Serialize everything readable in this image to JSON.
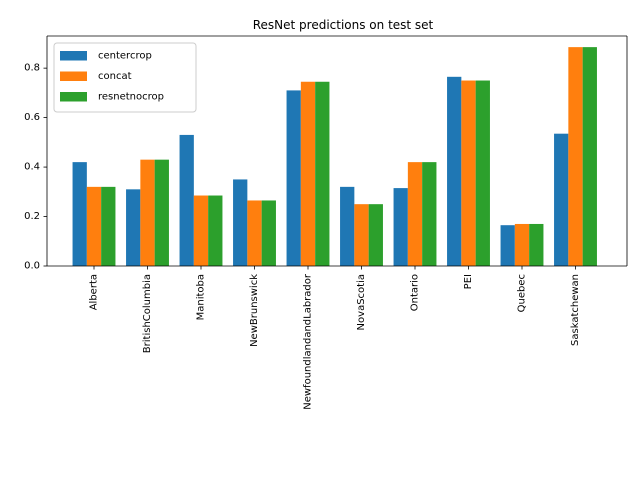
{
  "chart_data": {
    "type": "bar",
    "title": "ResNet predictions on test set",
    "xlabel": "",
    "ylabel": "",
    "ylim": [
      0,
      0.93
    ],
    "yticks": [
      "0.0",
      "0.2",
      "0.4",
      "0.6",
      "0.8"
    ],
    "ytick_values": [
      0.0,
      0.2,
      0.4,
      0.6,
      0.8
    ],
    "categories": [
      "Alberta",
      "BritishColumbia",
      "Manitoba",
      "NewBrunswick",
      "NewfoundlandandLabrador",
      "NovaScotia",
      "Ontario",
      "PEI",
      "Quebec",
      "Saskatchewan"
    ],
    "series": [
      {
        "name": "centercrop",
        "color": "#1f77b4",
        "values": [
          0.42,
          0.31,
          0.53,
          0.35,
          0.71,
          0.32,
          0.315,
          0.765,
          0.165,
          0.535
        ]
      },
      {
        "name": "concat",
        "color": "#ff7f0e",
        "values": [
          0.32,
          0.43,
          0.285,
          0.265,
          0.745,
          0.25,
          0.42,
          0.75,
          0.17,
          0.885
        ]
      },
      {
        "name": "resnetnocrop",
        "color": "#2ca02c",
        "values": [
          0.32,
          0.43,
          0.285,
          0.265,
          0.745,
          0.25,
          0.42,
          0.75,
          0.17,
          0.885
        ]
      }
    ],
    "legend_position": "top-left",
    "grid": false
  }
}
